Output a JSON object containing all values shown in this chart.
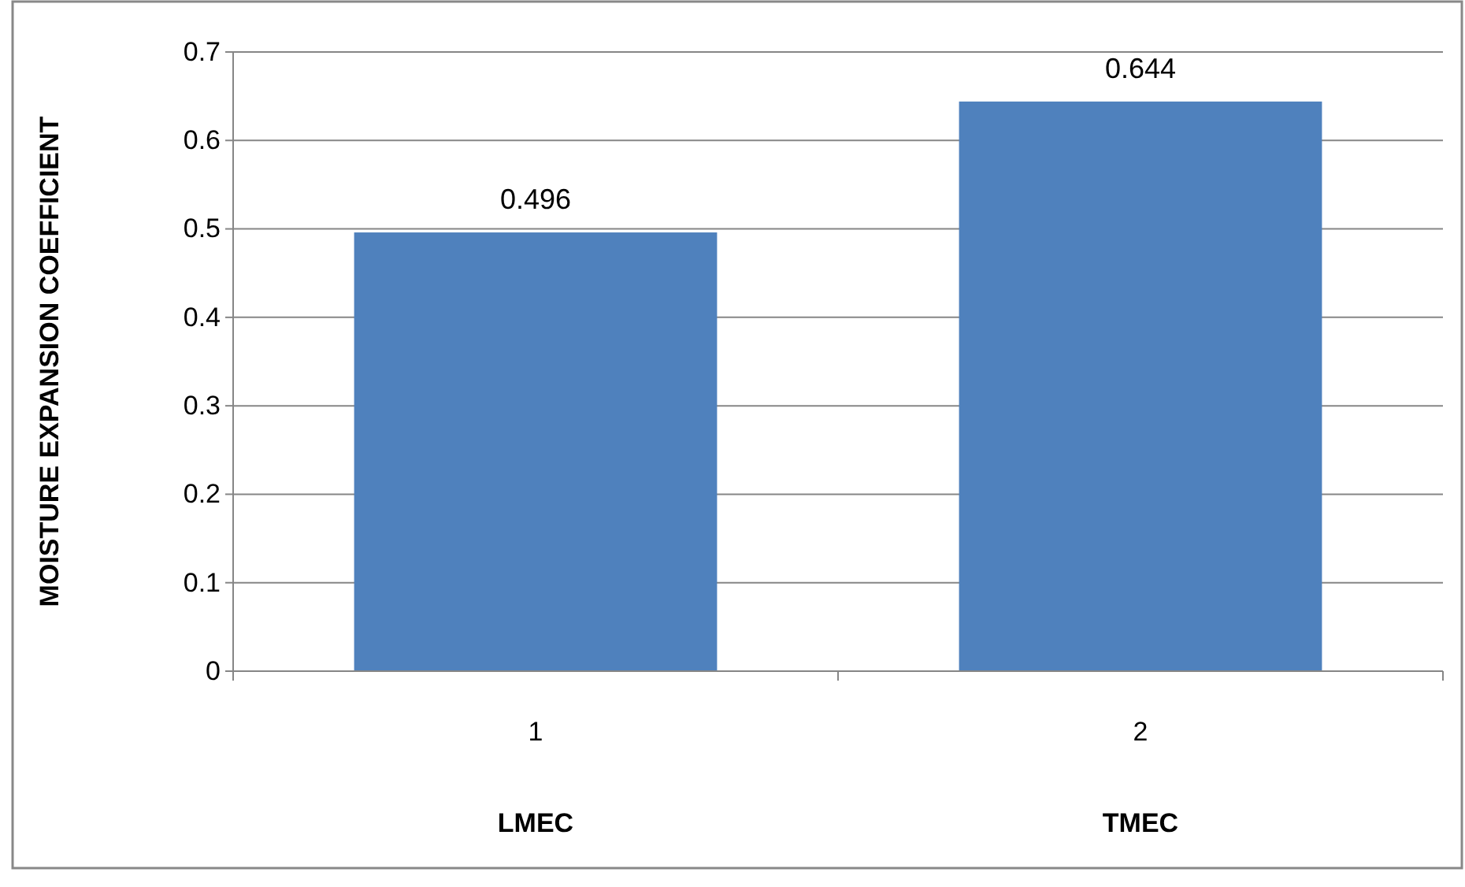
{
  "chart_data": {
    "type": "bar",
    "ylabel": "MOISTURE EXPANSION COEFFICIENT",
    "categories": [
      "1",
      "2"
    ],
    "values": [
      0.496,
      0.644
    ],
    "color": "#4f81bd",
    "data_labels": true,
    "grid": "y",
    "ylim": [
      0,
      0.7
    ],
    "yticks": [
      0,
      0.1,
      0.2,
      0.3,
      0.4,
      0.5,
      0.6,
      0.7
    ],
    "annotations": [
      "LMEC",
      "TMEC"
    ]
  }
}
